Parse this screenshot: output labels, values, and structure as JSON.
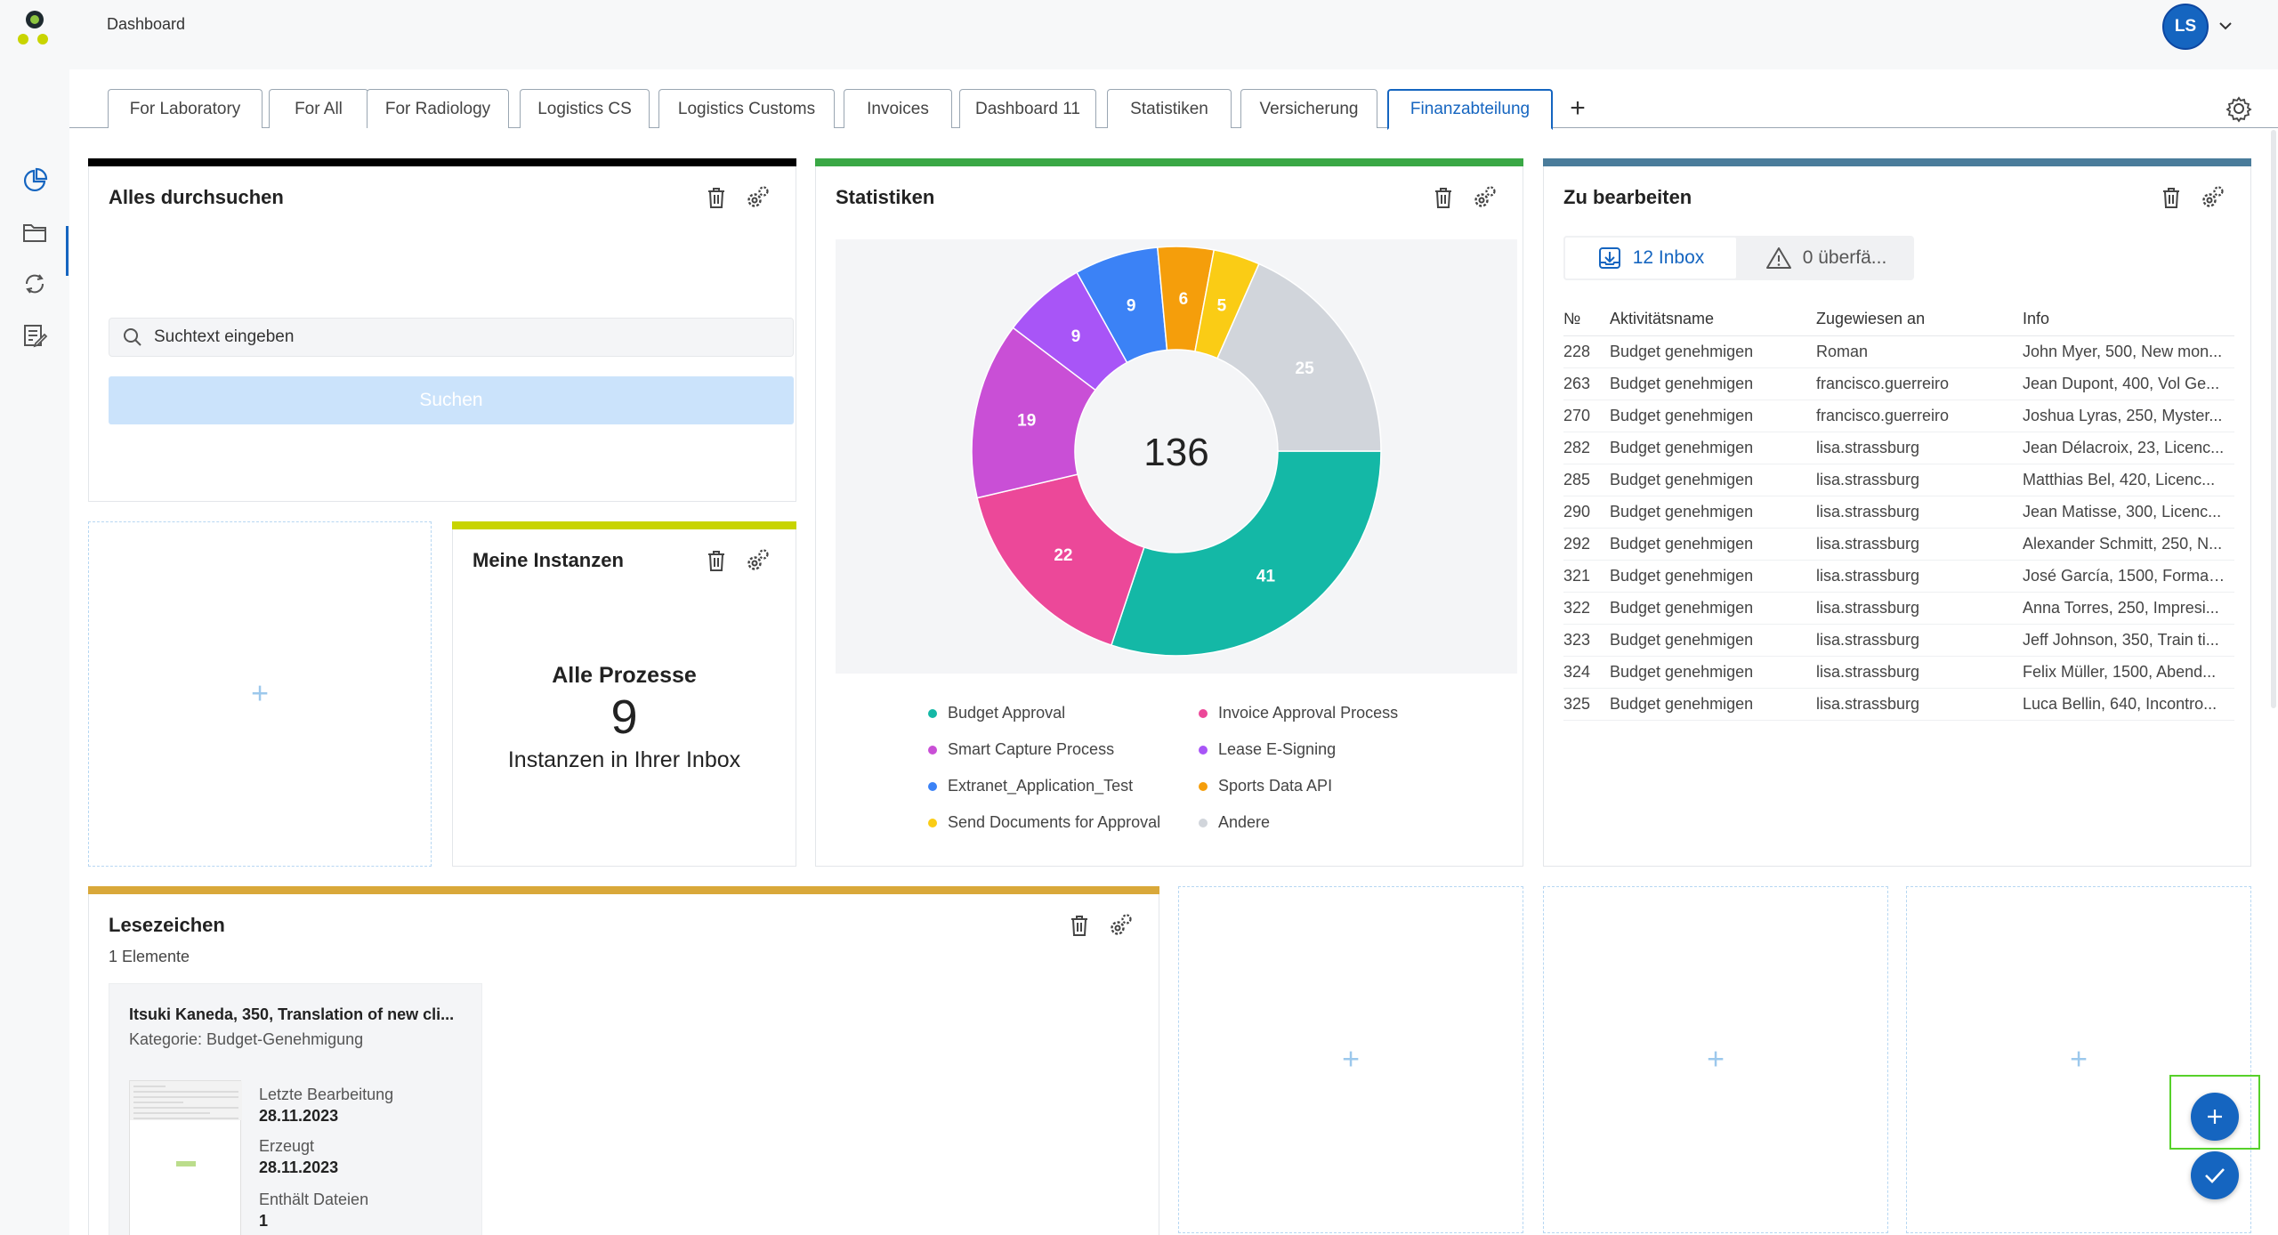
{
  "app": {
    "title": "Dashboard",
    "user_initials": "LS",
    "accent": "#1565c0"
  },
  "sidebar": {
    "items": [
      {
        "name": "dashboard",
        "icon": "pie-chart-icon",
        "active": true
      },
      {
        "name": "documents",
        "icon": "folder-icon",
        "active": false
      },
      {
        "name": "processes",
        "icon": "sync-icon",
        "active": false
      },
      {
        "name": "tasks",
        "icon": "edit-list-icon",
        "active": false
      }
    ]
  },
  "tabs": [
    {
      "label": "For Laboratory"
    },
    {
      "label": "For All"
    },
    {
      "label": "For Radiology"
    },
    {
      "label": "Logistics CS"
    },
    {
      "label": "Logistics Customs"
    },
    {
      "label": "Invoices"
    },
    {
      "label": "Dashboard 11"
    },
    {
      "label": "Statistiken"
    },
    {
      "label": "Versicherung"
    },
    {
      "label": "Finanzabteilung",
      "active": true
    }
  ],
  "search_widget": {
    "title": "Alles durchsuchen",
    "placeholder": "Suchtext eingeben",
    "button_label": "Suchen",
    "line_color": "#000000"
  },
  "instances_widget": {
    "title": "Meine Instanzen",
    "heading": "Alle Prozesse",
    "count": "9",
    "subtext": "Instanzen in Ihrer Inbox",
    "line_color": "#c8d400"
  },
  "stats_widget": {
    "title": "Statistiken",
    "total": "136",
    "line_color": "#3aa845"
  },
  "chart_data": {
    "type": "pie",
    "title": "Statistiken",
    "total": 136,
    "slices": [
      {
        "label": "Budget Approval",
        "value": 41,
        "color": "#14b8a6"
      },
      {
        "label": "Invoice Approval Process",
        "value": 22,
        "color": "#ec4899"
      },
      {
        "label": "Smart Capture Process",
        "value": 19,
        "color": "#c94fd6"
      },
      {
        "label": "Lease E-Signing",
        "value": 9,
        "color": "#a855f7"
      },
      {
        "label": "Extranet_Application_Test",
        "value": 9,
        "color": "#3b82f6"
      },
      {
        "label": "Sports Data API",
        "value": 6,
        "color": "#f59e0b"
      },
      {
        "label": "Send Documents for Approval",
        "value": 5,
        "color": "#facc15"
      },
      {
        "label": "Andere",
        "value": 25,
        "color": "#d1d5db"
      }
    ],
    "legend_order": [
      "Budget Approval",
      "Invoice Approval Process",
      "Smart Capture Process",
      "Lease E-Signing",
      "Extranet_Application_Test",
      "Sports Data API",
      "Send Documents for Approval",
      "Andere"
    ]
  },
  "todo_widget": {
    "title": "Zu bearbeiten",
    "line_color": "#4a7c9b",
    "inbox_label": "12 Inbox",
    "overdue_label": "0 überfä...",
    "columns": [
      "№",
      "Aktivitätsname",
      "Zugewiesen an",
      "Info"
    ],
    "rows": [
      [
        "228",
        "Budget genehmigen",
        "Roman",
        "John Myer, 500, New mon..."
      ],
      [
        "263",
        "Budget genehmigen",
        "francisco.guerreiro",
        "Jean Dupont, 400, Vol Ge..."
      ],
      [
        "270",
        "Budget genehmigen",
        "francisco.guerreiro",
        "Joshua Lyras, 250, Myster..."
      ],
      [
        "282",
        "Budget genehmigen",
        "lisa.strassburg",
        "Jean Délacroix, 23, Licenc..."
      ],
      [
        "285",
        "Budget genehmigen",
        "lisa.strassburg",
        "Matthias Bel, 420, Licenc..."
      ],
      [
        "290",
        "Budget genehmigen",
        "lisa.strassburg",
        "Jean Matisse, 300, Licenc..."
      ],
      [
        "292",
        "Budget genehmigen",
        "lisa.strassburg",
        "Alexander Schmitt, 250, N..."
      ],
      [
        "321",
        "Budget genehmigen",
        "lisa.strassburg",
        "José García, 1500, Formac..."
      ],
      [
        "322",
        "Budget genehmigen",
        "lisa.strassburg",
        "Anna Torres, 250, Impresi..."
      ],
      [
        "323",
        "Budget genehmigen",
        "lisa.strassburg",
        "Jeff Johnson, 350, Train ti..."
      ],
      [
        "324",
        "Budget genehmigen",
        "lisa.strassburg",
        "Felix Müller, 1500, Abend..."
      ],
      [
        "325",
        "Budget genehmigen",
        "lisa.strassburg",
        "Luca Bellin, 640, Incontro..."
      ]
    ]
  },
  "bookmarks_widget": {
    "title": "Lesezeichen",
    "count_label": "1 Elemente",
    "line_color": "#d9a83a",
    "card": {
      "title": "Itsuki Kaneda, 350, Translation of new cli...",
      "category": "Kategorie: Budget-Genehmigung",
      "last_edit_label": "Letzte Bearbeitung",
      "last_edit_value": "28.11.2023",
      "created_label": "Erzeugt",
      "created_value": "28.11.2023",
      "files_label": "Enthält Dateien",
      "files_value": "1"
    }
  },
  "empty_slot_symbol": "+",
  "tab_add_symbol": "+"
}
